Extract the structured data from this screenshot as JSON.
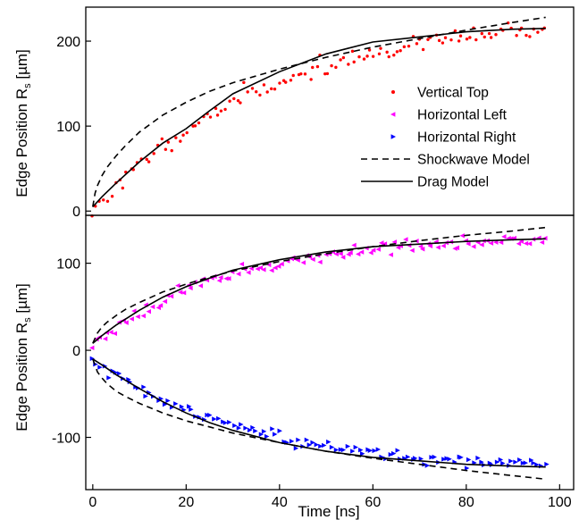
{
  "chart_data": [
    {
      "type": "scatter",
      "panel": "top",
      "xlabel": "",
      "ylabel": "Edge Position R_s [µm]",
      "ylabel_main": "Edge Position R",
      "ylabel_sub": "s",
      "ylabel_unit": " [µm]",
      "xlim": [
        -1.5,
        103
      ],
      "ylim": [
        -5,
        240
      ],
      "yticks": [
        0,
        100,
        200
      ],
      "ytick_labels": [
        "0",
        "100",
        "200"
      ],
      "legend_position": "center-right",
      "series": [
        {
          "name": "Vertical Top",
          "kind": "points",
          "marker": "dot",
          "color": "#ff0000",
          "model": "drag",
          "A": 233,
          "tau": 38,
          "noise": 5,
          "n": 120,
          "seed": 11
        },
        {
          "name": "Shockwave Model",
          "kind": "line",
          "style": "dashed",
          "color": "#000000",
          "x": [
            0,
            0.5,
            1,
            2,
            3,
            5,
            7,
            10,
            15,
            20,
            25,
            30,
            40,
            50,
            60,
            70,
            80,
            90,
            97
          ],
          "y": [
            5,
            21,
            30,
            42,
            51,
            65,
            77,
            93,
            113,
            128,
            141,
            151,
            167,
            181,
            193,
            203,
            213,
            222,
            228
          ]
        },
        {
          "name": "Drag Model",
          "kind": "line",
          "style": "solid",
          "color": "#000000",
          "x": [
            0,
            2,
            5,
            10,
            15,
            20,
            25,
            30,
            40,
            50,
            60,
            70,
            80,
            90,
            97
          ],
          "y": [
            5,
            17,
            33,
            58,
            80,
            97,
            118,
            138,
            164,
            185,
            199,
            205,
            211,
            214,
            215
          ]
        }
      ],
      "legend": [
        {
          "label": "Vertical Top",
          "symbol": "dot",
          "color": "#ff0000"
        },
        {
          "label": "Horizontal Left",
          "symbol": "tri-left",
          "color": "#ff00ff"
        },
        {
          "label": "Horizontal Right",
          "symbol": "tri-right",
          "color": "#0000ff"
        },
        {
          "label": "Shockwave Model",
          "symbol": "dashed",
          "color": "#000000"
        },
        {
          "label": "Drag Model",
          "symbol": "solid",
          "color": "#000000"
        }
      ]
    },
    {
      "type": "scatter",
      "panel": "bottom",
      "xlabel": "Time [ns]",
      "ylabel": "Edge Position R_s [µm]",
      "ylabel_main": "Edge Position R",
      "ylabel_sub": "s",
      "ylabel_unit": " [µm]",
      "xlim": [
        -1.5,
        103
      ],
      "ylim": [
        -160,
        155
      ],
      "xticks": [
        0,
        20,
        40,
        60,
        80,
        100
      ],
      "xtick_labels": [
        "0",
        "20",
        "40",
        "60",
        "80",
        "100"
      ],
      "yticks": [
        -100,
        0,
        100
      ],
      "ytick_labels": [
        "-100",
        "0",
        "100"
      ],
      "series": [
        {
          "name": "Horizontal Left",
          "kind": "points",
          "marker": "tri-left",
          "color": "#ff00ff",
          "model": "drag",
          "y0": 8,
          "A": 122,
          "tau": 28,
          "noise": 3.5,
          "n": 120,
          "seed": 23
        },
        {
          "name": "Horizontal Right",
          "kind": "points",
          "marker": "tri-right",
          "color": "#0000ff",
          "model": "drag",
          "y0": -12,
          "A": -126,
          "tau": 33,
          "noise": 3.5,
          "n": 120,
          "seed": 37
        },
        {
          "name": "Shockwave Model",
          "kind": "line",
          "style": "dashed",
          "color": "#000000",
          "x": [
            0,
            1,
            2,
            3,
            5,
            7,
            10,
            15,
            20,
            25,
            30,
            40,
            50,
            60,
            70,
            80,
            90,
            97
          ],
          "y": [
            8,
            20,
            27,
            32,
            40,
            47,
            55,
            67,
            76,
            84,
            91,
            102,
            111,
            119,
            126,
            132,
            137,
            141
          ]
        },
        {
          "name": "Drag Model",
          "kind": "line",
          "style": "solid",
          "color": "#000000",
          "x": [
            0,
            2,
            5,
            10,
            15,
            20,
            25,
            30,
            40,
            50,
            60,
            70,
            80,
            90,
            97
          ],
          "y": [
            8,
            17,
            29,
            46,
            61,
            73,
            83,
            92,
            104,
            113,
            119,
            122,
            125,
            127,
            128
          ]
        },
        {
          "name": "Shockwave Model (right)",
          "kind": "line",
          "style": "dashed",
          "color": "#000000",
          "x": [
            0,
            1,
            2,
            3,
            5,
            7,
            10,
            15,
            20,
            25,
            30,
            40,
            50,
            60,
            70,
            80,
            90,
            97
          ],
          "y": [
            -10,
            -25,
            -32,
            -38,
            -47,
            -53,
            -61,
            -72,
            -81,
            -88,
            -95,
            -106,
            -116,
            -124,
            -131,
            -138,
            -144,
            -148
          ]
        },
        {
          "name": "Drag Model (right)",
          "kind": "line",
          "style": "solid",
          "color": "#000000",
          "x": [
            0,
            2,
            5,
            10,
            15,
            20,
            25,
            30,
            40,
            50,
            60,
            70,
            80,
            90,
            97
          ],
          "y": [
            -10,
            -17,
            -28,
            -44,
            -59,
            -72,
            -83,
            -92,
            -106,
            -116,
            -123,
            -127,
            -131,
            -133,
            -134
          ]
        }
      ]
    }
  ]
}
